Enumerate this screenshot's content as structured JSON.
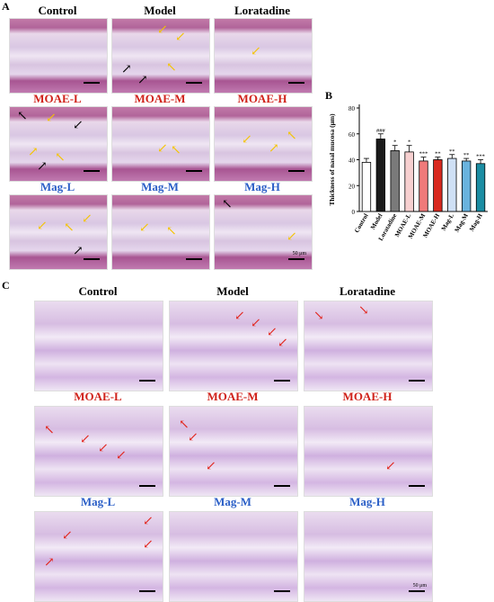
{
  "panels": {
    "a": {
      "letter": "A",
      "labels": [
        {
          "text": "Control",
          "color": "black"
        },
        {
          "text": "Model",
          "color": "black"
        },
        {
          "text": "Loratadine",
          "color": "black"
        },
        {
          "text": "MOAE-L",
          "color": "red"
        },
        {
          "text": "MOAE-M",
          "color": "red"
        },
        {
          "text": "MOAE-H",
          "color": "red"
        },
        {
          "text": "Mag-L",
          "color": "blue"
        },
        {
          "text": "Mag-M",
          "color": "blue"
        },
        {
          "text": "Mag-H",
          "color": "blue"
        }
      ],
      "scale_text": "50 μm"
    },
    "b": {
      "letter": "B"
    },
    "c": {
      "letter": "C",
      "labels": [
        {
          "text": "Control",
          "color": "black"
        },
        {
          "text": "Model",
          "color": "black"
        },
        {
          "text": "Loratadine",
          "color": "black"
        },
        {
          "text": "MOAE-L",
          "color": "red"
        },
        {
          "text": "MOAE-M",
          "color": "red"
        },
        {
          "text": "MOAE-H",
          "color": "red"
        },
        {
          "text": "Mag-L",
          "color": "blue"
        },
        {
          "text": "Mag-M",
          "color": "blue"
        },
        {
          "text": "Mag-H",
          "color": "blue"
        }
      ],
      "scale_text": "50 μm"
    }
  },
  "colors": {
    "red_label": "#d0231b",
    "blue_label": "#2b5fc7"
  },
  "chart_data": {
    "type": "bar",
    "ylabel": "Thickness of nasal mucosa (μm)",
    "ylim": [
      0,
      80
    ],
    "yticks": [
      0,
      20,
      40,
      60,
      80
    ],
    "categories": [
      "Control",
      "Model",
      "Loratadine",
      "MOAE-L",
      "MOAE-M",
      "MOAE-H",
      "Mag-L",
      "Mag-M",
      "Mag-H"
    ],
    "values": [
      38,
      56,
      47,
      46,
      39,
      40,
      41,
      39,
      37
    ],
    "errors": [
      3,
      4,
      4,
      5,
      3,
      2,
      3,
      2,
      3
    ],
    "significance": [
      "",
      "###",
      "*",
      "*",
      "***",
      "**",
      "**",
      "**",
      "***"
    ],
    "colors": [
      "#ffffff",
      "#1a1a1a",
      "#7a7a7a",
      "#f7d0d0",
      "#f07a7a",
      "#d9291f",
      "#cfe0f5",
      "#69b3de",
      "#1b8da3"
    ],
    "grid": false
  }
}
